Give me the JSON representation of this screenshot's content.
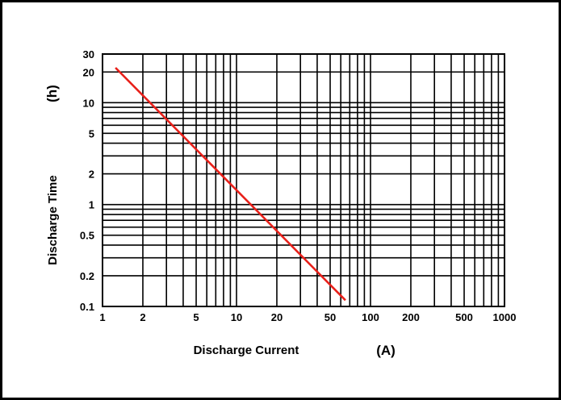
{
  "chart_data": {
    "type": "line",
    "title": "",
    "xlabel": "Discharge Current",
    "xunit": "(A)",
    "ylabel": "Discharge Time",
    "yunit": "(h)",
    "xscale": "log",
    "yscale": "log",
    "xlim": [
      1,
      1000
    ],
    "ylim": [
      0.1,
      30
    ],
    "grid": true,
    "x_ticks": [
      "1",
      "2",
      "5",
      "10",
      "20",
      "50",
      "100",
      "200",
      "500",
      "1000"
    ],
    "y_ticks": [
      "0.1",
      "0.2",
      "0.5",
      "1",
      "2",
      "5",
      "10",
      "20",
      "30"
    ],
    "series": [
      {
        "color": "#e8201a",
        "x": [
          1.25,
          65
        ],
        "y": [
          22,
          0.115
        ]
      }
    ]
  }
}
